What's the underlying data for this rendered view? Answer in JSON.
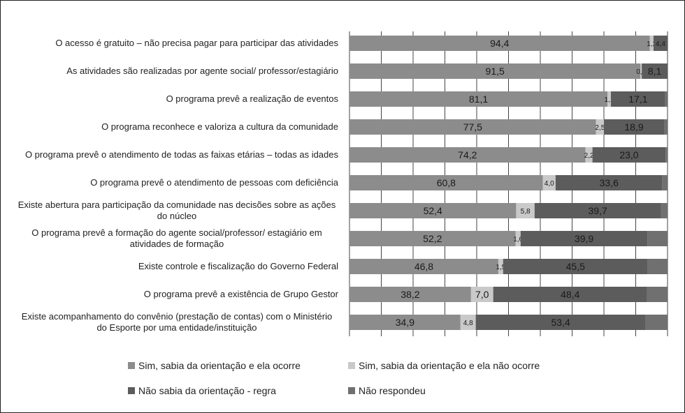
{
  "chart_data": {
    "type": "bar",
    "orientation": "horizontal",
    "stacked": true,
    "categories": [
      "O acesso é gratuito – não precisa pagar para participar das atividades",
      "As atividades são realizadas por agente social/ professor/estagiário",
      "O programa prevê a realização de eventos",
      "O programa reconhece e valoriza a cultura da comunidade",
      "O programa prevê o atendimento de todas as faixas etárias – todas as idades",
      "O programa prevê o atendimento de pessoas com deficiência",
      "Existe abertura para participação da comunidade nas decisões sobre as ações do núcleo",
      "O programa prevê a formação do agente social/professor/ estagiário em atividades de formação",
      "Existe controle e fiscalização do Governo Federal",
      "O programa prevê a existência de Grupo Gestor",
      "Existe acompanhamento do convênio (prestação de contas) com o Ministério do Esporte por uma entidade/instituição"
    ],
    "series": [
      {
        "name": "Sim, sabia da orientação e ela ocorre",
        "color": "#8c8c8c",
        "values": [
          94.4,
          91.5,
          81.1,
          77.5,
          74.2,
          60.8,
          52.4,
          52.2,
          46.8,
          38.2,
          34.9
        ],
        "value_labels": [
          "94,4",
          "91,5",
          "81,1",
          "77,5",
          "74,2",
          "60,8",
          "52,4",
          "52,2",
          "46,8",
          "38,2",
          "34,9"
        ]
      },
      {
        "name": "Sim, sabia da orientação e ela não ocorre",
        "color": "#c9c9c9",
        "values": [
          1.2,
          0.4,
          1.1,
          2.5,
          2.2,
          4.0,
          5.8,
          1.6,
          1.5,
          7.0,
          4.8
        ],
        "value_labels": [
          "1,2",
          "0,4",
          "1,1",
          "2,5",
          "2,2",
          "4,0",
          "5,8",
          "1,6",
          "1,5",
          "7,0",
          "4,8"
        ]
      },
      {
        "name": "Não sabia da orientação - regra",
        "color": "#5c5c5c",
        "values": [
          4.4,
          8.1,
          17.1,
          18.9,
          23.0,
          33.6,
          39.7,
          39.9,
          45.5,
          48.4,
          53.4
        ],
        "value_labels": [
          "4,4",
          "8,1",
          "17,1",
          "18,9",
          "23,0",
          "33,6",
          "39,7",
          "39,9",
          "45,5",
          "48,4",
          "53,4"
        ]
      },
      {
        "name": "Não respondeu",
        "color": "#707070",
        "values": [
          0,
          0,
          0.7,
          1.1,
          0.6,
          1.6,
          2.1,
          6.3,
          6.2,
          6.4,
          6.9
        ]
      }
    ],
    "xlim": [
      0,
      100
    ],
    "xticks": [
      0,
      10,
      20,
      30,
      40,
      50,
      60,
      70,
      80,
      90,
      100
    ],
    "grid": true
  }
}
